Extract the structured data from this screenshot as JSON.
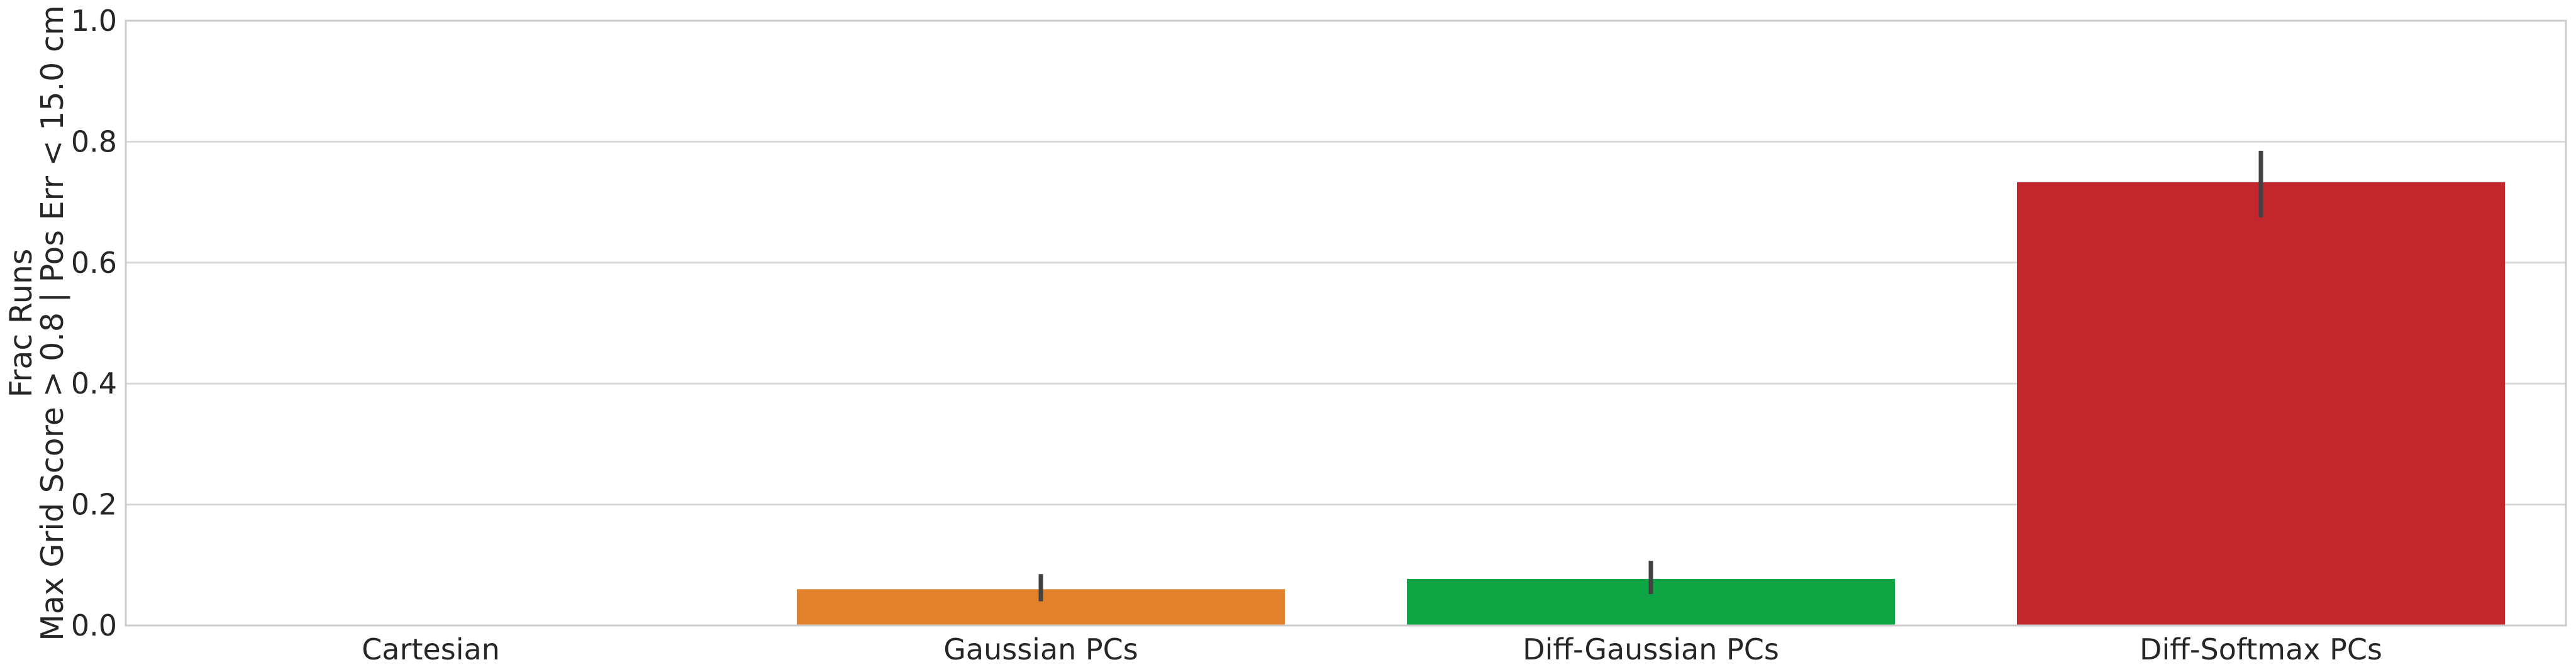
{
  "chart_data": {
    "type": "bar",
    "title": "",
    "xlabel": "",
    "ylabel_lines": [
      "Frac Runs",
      "Max Grid Score > 0.8 | Pos Err < 15.0 cm"
    ],
    "ylim": [
      0,
      1.0
    ],
    "yticks": [
      0.0,
      0.2,
      0.4,
      0.6,
      0.8,
      1.0
    ],
    "ytick_labels": [
      "0.0",
      "0.2",
      "0.4",
      "0.6",
      "0.8",
      "1.0"
    ],
    "grid": true,
    "categories": [
      "Cartesian",
      "Gaussian PCs",
      "Diff-Gaussian PCs",
      "Diff-Softmax PCs"
    ],
    "values": [
      0.0,
      0.06,
      0.077,
      0.733
    ],
    "error_low": [
      0.0,
      0.04,
      0.052,
      0.675
    ],
    "error_high": [
      0.0,
      0.085,
      0.107,
      0.785
    ],
    "colors": [
      "#3174a1",
      "#e1812c",
      "#0ea544",
      "#c3272e"
    ]
  }
}
